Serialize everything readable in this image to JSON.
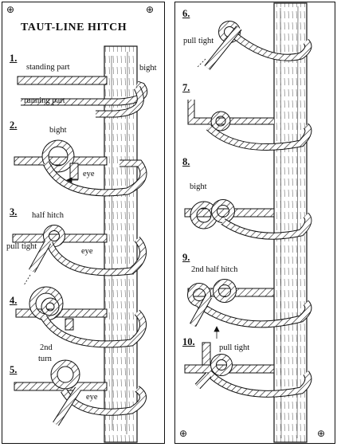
{
  "title": "TAUT-LINE HITCH",
  "register_mark": "⊕",
  "left_steps": [
    {
      "number": "1.",
      "labels": [
        "standing part",
        "bight",
        "running part"
      ]
    },
    {
      "number": "2.",
      "labels": [
        "bight",
        "eye"
      ]
    },
    {
      "number": "3.",
      "labels": [
        "half hitch",
        "pull tight",
        "eye"
      ]
    },
    {
      "number": "4.",
      "labels": []
    },
    {
      "number": "5.",
      "labels": [
        "2nd",
        "turn",
        "eye"
      ]
    }
  ],
  "right_steps": [
    {
      "number": "6.",
      "labels": [
        "pull tight"
      ]
    },
    {
      "number": "7.",
      "labels": []
    },
    {
      "number": "8.",
      "labels": [
        "bight"
      ]
    },
    {
      "number": "9.",
      "labels": [
        "2nd half hitch"
      ]
    },
    {
      "number": "10.",
      "labels": [
        "pull tight"
      ]
    }
  ]
}
